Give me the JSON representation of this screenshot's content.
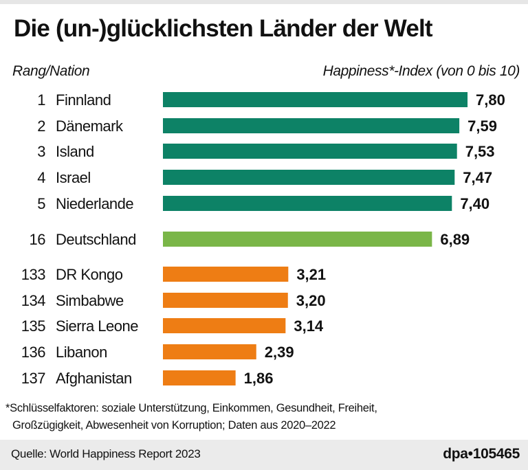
{
  "title": "Die (un-)glücklichsten Länder der Welt",
  "header_left": "Rang/Nation",
  "header_right": "Happiness*-Index (von 0 bis 10)",
  "footnote_line1": "*Schlüsselfaktoren: soziale Unterstützung, Einkommen, Gesundheit, Freiheit,",
  "footnote_line2": "Großzügigkeit, Abwesenheit von Korruption; Daten aus 2020–2022",
  "source": "Quelle: World Happiness Report 2023",
  "credit": "dpa•105465",
  "colors": {
    "top": "#0d8266",
    "germany": "#7ab648",
    "bottom": "#ee7d14"
  },
  "chart_data": {
    "type": "bar",
    "orientation": "horizontal",
    "xlim": [
      0,
      10
    ],
    "grid": false,
    "rows": [
      {
        "rank": "1",
        "nation": "Finnland",
        "value": 7.8,
        "label": "7,80",
        "group": "top"
      },
      {
        "rank": "2",
        "nation": "Dänemark",
        "value": 7.59,
        "label": "7,59",
        "group": "top"
      },
      {
        "rank": "3",
        "nation": "Island",
        "value": 7.53,
        "label": "7,53",
        "group": "top"
      },
      {
        "rank": "4",
        "nation": "Israel",
        "value": 7.47,
        "label": "7,47",
        "group": "top"
      },
      {
        "rank": "5",
        "nation": "Niederlande",
        "value": 7.4,
        "label": "7,40",
        "group": "top"
      },
      {
        "rank": "16",
        "nation": "Deutschland",
        "value": 6.89,
        "label": "6,89",
        "group": "germany"
      },
      {
        "rank": "133",
        "nation": "DR Kongo",
        "value": 3.21,
        "label": "3,21",
        "group": "bottom"
      },
      {
        "rank": "134",
        "nation": "Simbabwe",
        "value": 3.2,
        "label": "3,20",
        "group": "bottom"
      },
      {
        "rank": "135",
        "nation": "Sierra Leone",
        "value": 3.14,
        "label": "3,14",
        "group": "bottom"
      },
      {
        "rank": "136",
        "nation": "Libanon",
        "value": 2.39,
        "label": "2,39",
        "group": "bottom"
      },
      {
        "rank": "137",
        "nation": "Afghanistan",
        "value": 1.86,
        "label": "1,86",
        "group": "bottom"
      }
    ]
  }
}
